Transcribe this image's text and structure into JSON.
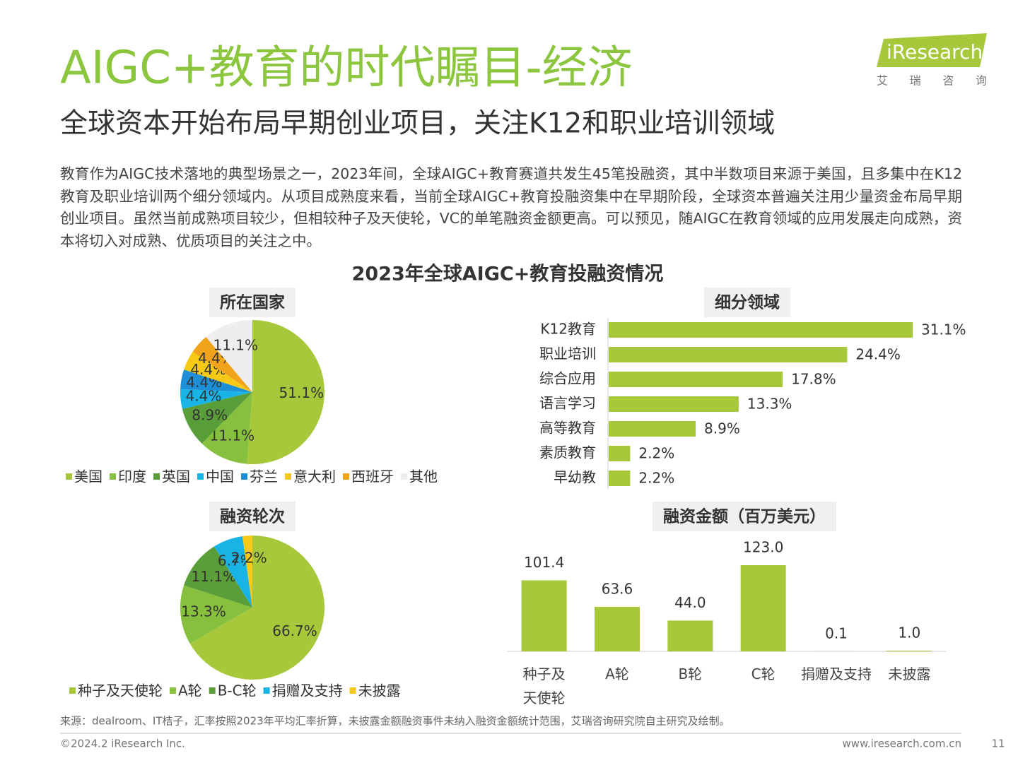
{
  "header": {
    "title": "AIGC+教育的时代瞩目-经济",
    "subtitle": "全球资本开始布局早期创业项目，关注K12和职业培训领域",
    "logo": "iResearch",
    "logo_sub": "艾 瑞 咨 询"
  },
  "body": "教育作为AIGC技术落地的典型场景之一，2023年间，全球AIGC+教育赛道共发生45笔投融资，其中半数项目来源于美国，且多集中在K12教育及职业培训两个细分领域内。从项目成熟度来看，当前全球AIGC+教育投融资集中在早期阶段，全球资本普遍关注用少量资金布局早期创业项目。虽然当前成熟项目较少，但相较种子及天使轮，VC的单笔融资金额更高。可以预见，随AIGC在教育领域的应用发展走向成熟，资本将切入对成熟、优质项目的关注之中。",
  "section_title": "2023年全球AIGC+教育投融资情况",
  "chart_data": [
    {
      "type": "pie",
      "title": "所在国家",
      "categories": [
        "美国",
        "印度",
        "英国",
        "中国",
        "芬兰",
        "意大利",
        "西班牙",
        "其他"
      ],
      "values": [
        51.1,
        11.1,
        8.9,
        4.4,
        4.4,
        4.4,
        4.4,
        11.1
      ],
      "value_labels": [
        "51.1%",
        "11.1%",
        "8.9%",
        "4.4%",
        "4.4%",
        "4.4%",
        "4.4%",
        "11.1%"
      ],
      "colors": [
        "#a6c83a",
        "#86c03e",
        "#5a9e3a",
        "#18b4e6",
        "#1d8fd6",
        "#f6c916",
        "#f2a31c",
        "#eeeeee"
      ]
    },
    {
      "type": "barh",
      "title": "细分领域",
      "categories": [
        "K12教育",
        "职业培训",
        "综合应用",
        "语言学习",
        "高等教育",
        "素质教育",
        "早幼教"
      ],
      "values": [
        31.1,
        24.4,
        17.8,
        13.3,
        8.9,
        2.2,
        2.2
      ],
      "value_labels": [
        "31.1%",
        "24.4%",
        "17.8%",
        "13.3%",
        "8.9%",
        "2.2%",
        "2.2%"
      ],
      "color": "#a6c83a"
    },
    {
      "type": "pie",
      "title": "融资轮次",
      "categories": [
        "种子及天使轮",
        "A轮",
        "B-C轮",
        "捐赠及支持",
        "未披露"
      ],
      "values": [
        66.7,
        13.3,
        11.1,
        6.7,
        2.2
      ],
      "value_labels": [
        "66.7%",
        "13.3%",
        "11.1%",
        "6.7%",
        "2.2%"
      ],
      "colors": [
        "#a6c83a",
        "#86c03e",
        "#5a9e3a",
        "#18b4e6",
        "#f6c916"
      ]
    },
    {
      "type": "bar",
      "title": "融资金额（百万美元）",
      "categories": [
        "种子及天使轮",
        "A轮",
        "B轮",
        "C轮",
        "捐赠及支持",
        "未披露"
      ],
      "values": [
        101.4,
        63.6,
        44.0,
        123.0,
        0.1,
        1.0
      ],
      "value_labels": [
        "101.4",
        "63.6",
        "44.0",
        "123.0",
        "0.1",
        "1.0"
      ],
      "color": "#a6c83a"
    }
  ],
  "footer": {
    "source": "来源：dealroom、IT桔子，汇率按照2023年平均汇率折算，未披露金额融资事件未纳入融资金额统计范围，艾瑞咨询研究院自主研究及绘制。",
    "copyright": "©2024.2 iResearch Inc.",
    "url": "www.iresearch.com.cn",
    "page": "11"
  }
}
